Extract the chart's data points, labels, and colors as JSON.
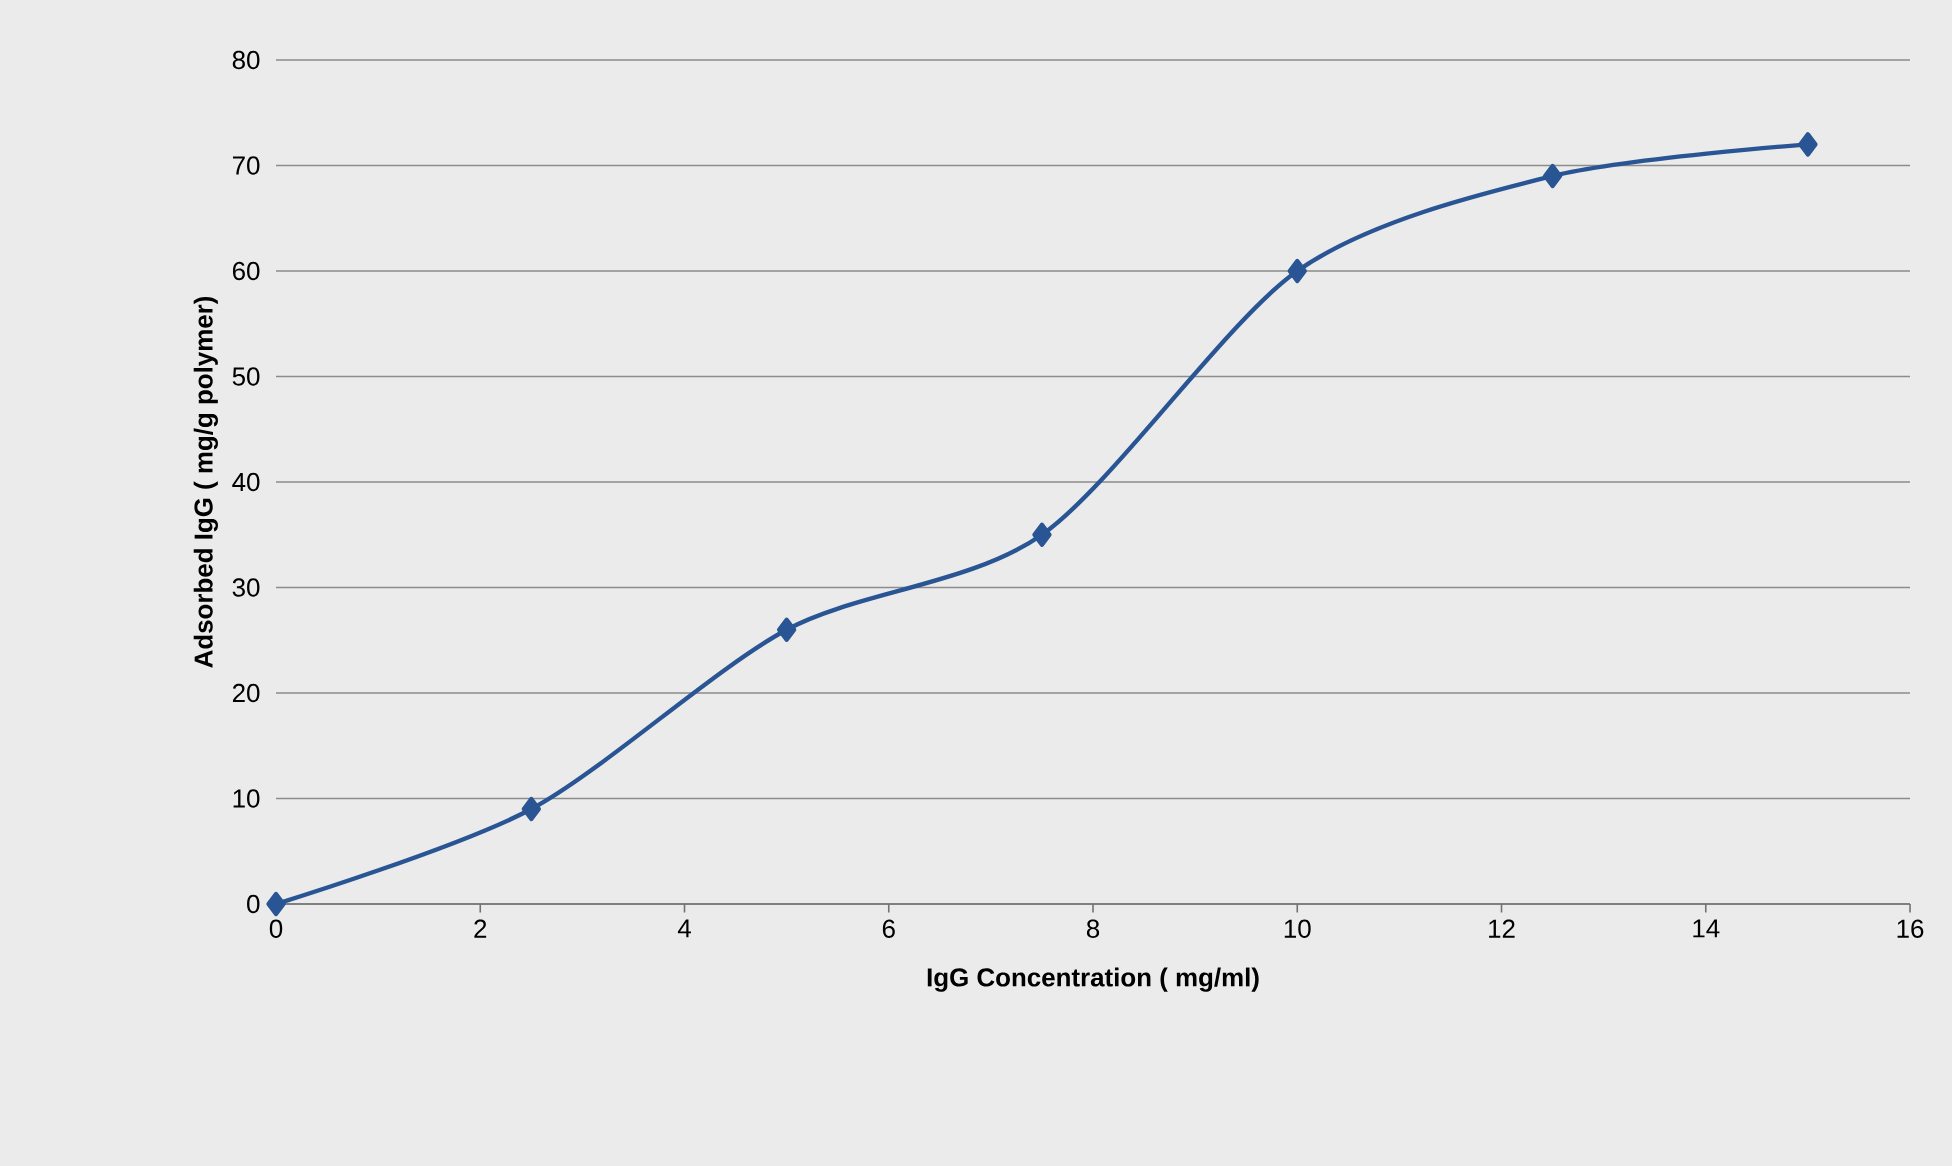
{
  "chart_data": {
    "type": "line",
    "xlabel": "IgG Concentration ( mg/ml)",
    "ylabel": "Adsorbed IgG ( mg/g polymer)",
    "x": [
      0,
      2.5,
      5,
      7.5,
      10,
      12.5,
      15
    ],
    "series": [
      {
        "color": "#2a5594",
        "values": [
          0,
          9,
          26,
          35,
          60,
          69,
          72
        ]
      }
    ],
    "xlim": [
      0,
      16
    ],
    "xticks": [
      0,
      2,
      4,
      6,
      8,
      10,
      12,
      14,
      16
    ],
    "ylim": [
      0,
      80
    ],
    "yticks": [
      0,
      10,
      20,
      30,
      40,
      50,
      60,
      70,
      80
    ],
    "grid": "y",
    "marker": "diamond",
    "line_style": "solid"
  }
}
